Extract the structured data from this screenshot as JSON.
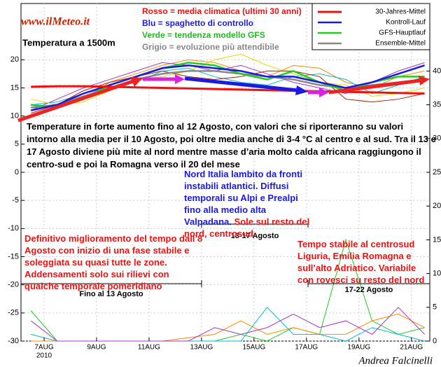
{
  "chart_data": {
    "type": "line",
    "logo": "www.ilMeteo.it",
    "subtitle": "Temperatura a 1500m",
    "color_notes": [
      {
        "text": "Rosso = media climatica (ultimi 30 anni)",
        "color": "#ee1111"
      },
      {
        "text": "Blu = spaghetto di controllo",
        "color": "#1a1ae0"
      },
      {
        "text": "Verde = tendenza modello GFS",
        "color": "#22bb22"
      },
      {
        "text": "Grigio = evoluzione più attendibile",
        "color": "#888888"
      }
    ],
    "x": [
      6.5,
      7.5,
      8.5,
      9.5,
      10.5,
      11.5,
      12.5,
      13.5,
      14.5,
      15.5,
      16.5,
      17.5,
      18.5,
      19.5,
      20.5,
      21.5
    ],
    "xlim": [
      6.12,
      21.7
    ],
    "xticks": [
      {
        "value": 7,
        "label": "7AUG"
      },
      {
        "value": 9,
        "label": "9AUG"
      },
      {
        "value": 11,
        "label": "11AUG"
      },
      {
        "value": 13,
        "label": "13AUG"
      },
      {
        "value": 15,
        "label": "15AUG"
      },
      {
        "value": 17,
        "label": "17AUG"
      },
      {
        "value": 19,
        "label": "19AUG"
      },
      {
        "value": 21,
        "label": "21AUG"
      }
    ],
    "x_year": "2010",
    "ylim": [
      -30,
      30
    ],
    "yticks": [
      -30,
      -25,
      -20,
      -15,
      -10,
      -5,
      0,
      5,
      10,
      15,
      20
    ],
    "y2lim": [
      0,
      50
    ],
    "y2ticks": [
      0,
      5,
      10,
      15,
      20,
      25,
      30,
      35,
      40
    ],
    "grid": true,
    "legend": "upper right",
    "series": [
      {
        "name": "30-Jahres-Mittel",
        "color": "#ee1111",
        "values": [
          15.2,
          15.3,
          15.3,
          15.2,
          15.1,
          15,
          14.9,
          14.8,
          14.7,
          14.6,
          14.5,
          14.4,
          14.3,
          14.2,
          14.1,
          14
        ]
      },
      {
        "name": "Kontroll-Lauf",
        "color": "#1a1ae0",
        "values": [
          11,
          12,
          14,
          15.5,
          17,
          18.5,
          19,
          18.5,
          18,
          17,
          17,
          16,
          15,
          16,
          17.5,
          19
        ]
      },
      {
        "name": "GFS-Hauptlauf",
        "color": "#22cc22",
        "values": [
          12,
          11.5,
          13,
          15.5,
          17,
          18.5,
          19.5,
          19,
          17.5,
          16.5,
          18,
          16,
          14.5,
          16,
          17,
          17
        ]
      },
      {
        "name": "Ensemble-Mittel",
        "color": "#888888",
        "values": [
          11.5,
          12,
          13.5,
          15,
          16.5,
          17.5,
          18,
          18,
          17.5,
          17,
          16.5,
          15.5,
          15,
          15.5,
          16,
          16.5
        ]
      }
    ],
    "members": [
      {
        "color": "#ff8800",
        "values": [
          10,
          11.5,
          13,
          16,
          17.5,
          19,
          20,
          19.5,
          18,
          17,
          19,
          18.5,
          16,
          15,
          17,
          18
        ]
      },
      {
        "color": "#00bbdd",
        "values": [
          12,
          12.5,
          14,
          15,
          16,
          18,
          18.5,
          17,
          16,
          15.5,
          17,
          17.5,
          16.5,
          14,
          15.5,
          17
        ]
      },
      {
        "color": "#aa33cc",
        "values": [
          11,
          13,
          15,
          16.5,
          18,
          19.5,
          19,
          18,
          19,
          17.5,
          16,
          15,
          14,
          16,
          18,
          19.5
        ]
      },
      {
        "color": "#dddd00",
        "values": [
          13,
          12,
          12.5,
          14.5,
          16.5,
          17,
          18,
          20,
          21,
          19,
          17.5,
          16,
          15.5,
          13.5,
          14,
          15
        ]
      },
      {
        "color": "#aa2200",
        "values": [
          10.5,
          12,
          14.5,
          16,
          17,
          18,
          17,
          16.5,
          17,
          18,
          18,
          17,
          13,
          12.5,
          13,
          14
        ]
      }
    ],
    "precipitation": [
      {
        "color": "#22cc22",
        "axis": "y2",
        "values": [
          4.5,
          0,
          0,
          0,
          0,
          0,
          0,
          0,
          1,
          0,
          2,
          1,
          15,
          3,
          1,
          2
        ]
      },
      {
        "color": "#ff8800",
        "axis": "y2",
        "values": [
          0,
          0,
          0,
          0,
          0,
          0,
          0.5,
          1,
          3,
          1,
          2,
          1,
          1,
          3,
          4,
          2
        ]
      },
      {
        "color": "#00bbdd",
        "axis": "y2",
        "values": [
          1,
          0,
          0,
          0,
          0,
          0,
          0,
          0,
          0,
          5,
          1,
          1,
          0,
          2,
          1,
          0
        ]
      },
      {
        "color": "#aa33cc",
        "axis": "y2",
        "values": [
          3,
          0,
          0,
          0,
          0,
          0,
          0,
          2,
          1,
          2,
          4,
          2,
          3,
          1,
          5,
          1
        ]
      }
    ],
    "summary": "Temperature in forte aumento fino al 12 Agosto, con valori che si riporteranno su valori intorno alla media per il 10 Agosto, poi oltre media anche di 3-4 °C al centro e al sud. Tra il 13 e 17 Agosto diviene più mite al nord mentre masse d’aria molto calda africana raggiungono il centro-sud e poi la Romagna verso il 20 del mese",
    "periods": [
      {
        "label": "Fino al 13 Agosto",
        "text": [
          "Definitivo miglioramento del tempo dall’8 Agosto con inizio di una fase stabile e soleggiata su quasi tutte le zone. Addensamenti solo sui rilievi con qualche temporale pomeridiano"
        ]
      },
      {
        "label": "13-17 Agosto",
        "text": [
          "Nord Italia lambito da fronti instabili atlantici. Diffusi temporali su Alpi e Prealpi fino alla medio alta Valpadana.",
          " Sole sul resto del nord, centrosud"
        ]
      },
      {
        "label": "17-22 Agosto",
        "text": [
          "Tempo stabile al centrosud Liguria, Emilia Romagna e sull’alto Adriatico. Variabile con rovesci su resto del nord"
        ]
      }
    ],
    "author": "Andrea Falcinelli"
  }
}
